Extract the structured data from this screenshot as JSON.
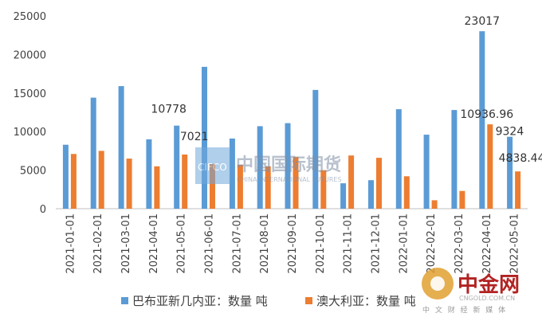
{
  "chart_data": {
    "type": "bar",
    "categories": [
      "2021-01-01",
      "2021-02-01",
      "2021-03-01",
      "2021-04-01",
      "2021-05-01",
      "2021-06-01",
      "2021-07-01",
      "2021-08-01",
      "2021-09-01",
      "2021-10-01",
      "2021-11-01",
      "2021-12-01",
      "2022-01-01",
      "2022-02-01",
      "2022-03-01",
      "2022-04-01",
      "2022-05-01"
    ],
    "series": [
      {
        "name": "巴布亚新几内亚：数量 吨",
        "color": "#5b9bd5",
        "values": [
          8300,
          14400,
          15900,
          9000,
          10778,
          18400,
          9100,
          10700,
          11100,
          15400,
          3300,
          3700,
          12900,
          9600,
          12800,
          23017,
          9324
        ]
      },
      {
        "name": "澳大利亚：数量 吨",
        "color": "#ed7d31",
        "values": [
          7100,
          7500,
          6500,
          5500,
          7021,
          5800,
          5700,
          5500,
          6700,
          5000,
          6900,
          6600,
          4200,
          1100,
          2300,
          10936.96,
          4838.44
        ]
      }
    ],
    "ylim": [
      0,
      25000
    ],
    "yticks": [
      "0",
      "5000",
      "10000",
      "15000",
      "20000",
      "25000"
    ],
    "data_labels": [
      {
        "category_index": 4,
        "series_index": 0,
        "text": "10778"
      },
      {
        "category_index": 4,
        "series_index": 1,
        "text": "7021"
      },
      {
        "category_index": 15,
        "series_index": 0,
        "text": "23017"
      },
      {
        "category_index": 15,
        "series_index": 1,
        "text": "10936.96"
      },
      {
        "category_index": 16,
        "series_index": 0,
        "text": "9324"
      },
      {
        "category_index": 16,
        "series_index": 1,
        "text": "4838.44"
      }
    ],
    "legend_position": "bottom",
    "grid": false
  },
  "watermarks": {
    "center_logo_text": "CIFCO",
    "center_cn": "中国国际期货",
    "center_en": "CHINA INTERNATIONAL FUTURES",
    "brand_cn": "中金网",
    "brand_domain": "CNGOLD.COM.CN",
    "brand_tagline": "中 文 财 经 新 媒 体"
  }
}
